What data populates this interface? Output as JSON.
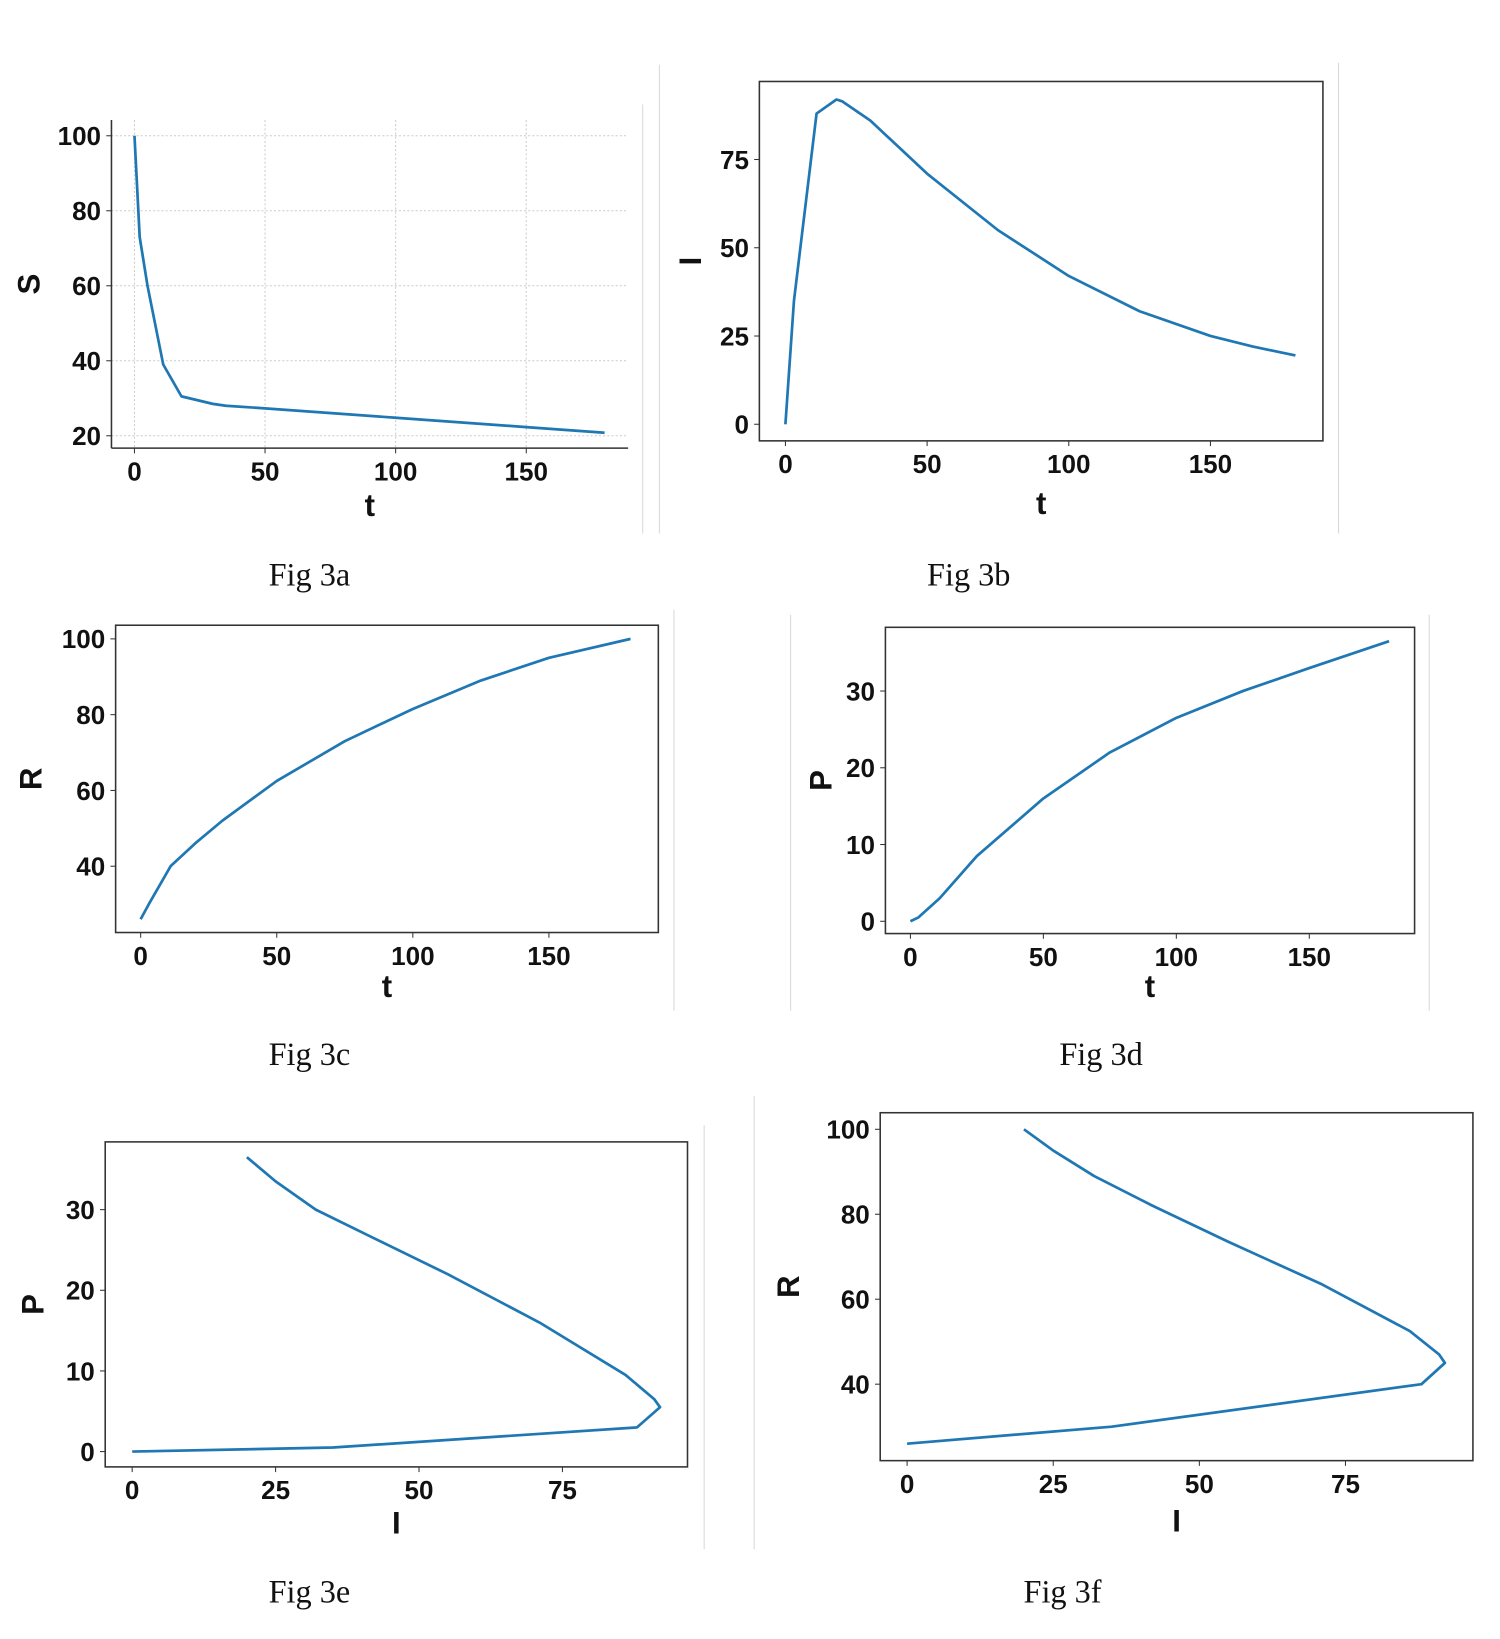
{
  "chart_data": [
    {
      "id": "3a",
      "type": "line",
      "caption": "Fig 3a",
      "xlabel": "t",
      "ylabel": "S",
      "grid": true,
      "box": false,
      "xlim": [
        -8.8,
        189
      ],
      "ylim": [
        16.7,
        104.2
      ],
      "xticks": [
        0,
        50,
        100,
        150
      ],
      "yticks": [
        20,
        40,
        60,
        80,
        100
      ],
      "x": [
        0,
        2,
        5,
        11,
        18,
        30,
        35,
        50,
        100,
        150,
        180
      ],
      "y": [
        100,
        73,
        60,
        39,
        30.5,
        28.5,
        28,
        27.3,
        24.8,
        22.3,
        20.8
      ]
    },
    {
      "id": "3b",
      "type": "line",
      "caption": "Fig 3b",
      "xlabel": "t",
      "ylabel": "I",
      "grid": false,
      "box": true,
      "xlim": [
        -9.2,
        189.7
      ],
      "ylim": [
        -4.7,
        97.1
      ],
      "xticks": [
        0,
        50,
        100,
        150
      ],
      "yticks": [
        0,
        25,
        50,
        75
      ],
      "x": [
        0,
        3,
        11,
        18,
        20,
        30,
        50,
        75,
        100,
        125,
        150,
        165,
        180
      ],
      "y": [
        0,
        35,
        88,
        92,
        91.5,
        86,
        71,
        55,
        42,
        32,
        25,
        22,
        19.5
      ]
    },
    {
      "id": "3c",
      "type": "line",
      "caption": "Fig 3c",
      "xlabel": "t",
      "ylabel": "R",
      "grid": false,
      "box": true,
      "xlim": [
        -9.2,
        190.2
      ],
      "ylim": [
        22.5,
        103.6
      ],
      "xticks": [
        0,
        50,
        100,
        150
      ],
      "yticks": [
        40,
        60,
        80,
        100
      ],
      "x": [
        0,
        3,
        11,
        20,
        30,
        50,
        75,
        100,
        125,
        150,
        180
      ],
      "y": [
        26,
        30,
        40,
        46,
        52,
        62.5,
        73,
        81.5,
        89,
        95,
        100
      ]
    },
    {
      "id": "3d",
      "type": "line",
      "caption": "Fig 3d",
      "xlabel": "t",
      "ylabel": "P",
      "grid": false,
      "box": true,
      "xlim": [
        -9.4,
        189.6
      ],
      "ylim": [
        -1.6,
        38.3
      ],
      "xticks": [
        0,
        50,
        100,
        150
      ],
      "yticks": [
        0,
        10,
        20,
        30
      ],
      "x": [
        0,
        3,
        11,
        25,
        50,
        75,
        100,
        125,
        150,
        180
      ],
      "y": [
        0,
        0.5,
        3,
        8.5,
        16,
        22,
        26.5,
        30,
        33,
        36.5
      ]
    },
    {
      "id": "3e",
      "type": "line",
      "caption": "Fig 3e",
      "xlabel": "I",
      "ylabel": "P",
      "grid": false,
      "box": true,
      "xlim": [
        -4.7,
        96.8
      ],
      "ylim": [
        -1.9,
        38.4
      ],
      "xticks": [
        0,
        25,
        50,
        75
      ],
      "yticks": [
        0,
        10,
        20,
        30
      ],
      "x": [
        0,
        35,
        88,
        92,
        91,
        86,
        71,
        55,
        42,
        32,
        25,
        20
      ],
      "y": [
        0,
        0.5,
        3,
        5.5,
        6.5,
        9.5,
        16,
        22,
        26.5,
        30,
        33.5,
        36.5
      ]
    },
    {
      "id": "3f",
      "type": "line",
      "caption": "Fig 3f",
      "xlabel": "I",
      "ylabel": "R",
      "grid": false,
      "box": true,
      "xlim": [
        -4.6,
        96.8
      ],
      "ylim": [
        22,
        103.9
      ],
      "xticks": [
        0,
        25,
        50,
        75
      ],
      "yticks": [
        40,
        60,
        80,
        100
      ],
      "x": [
        0,
        35,
        88,
        92,
        91,
        86,
        71,
        55,
        42,
        32,
        25,
        20
      ],
      "y": [
        26,
        30,
        40,
        45,
        47,
        52.5,
        63.5,
        73.5,
        82,
        89,
        95,
        100
      ]
    }
  ],
  "colors": {
    "line": "#1f77b4",
    "axis": "#333333",
    "grid": "#cccccc"
  }
}
